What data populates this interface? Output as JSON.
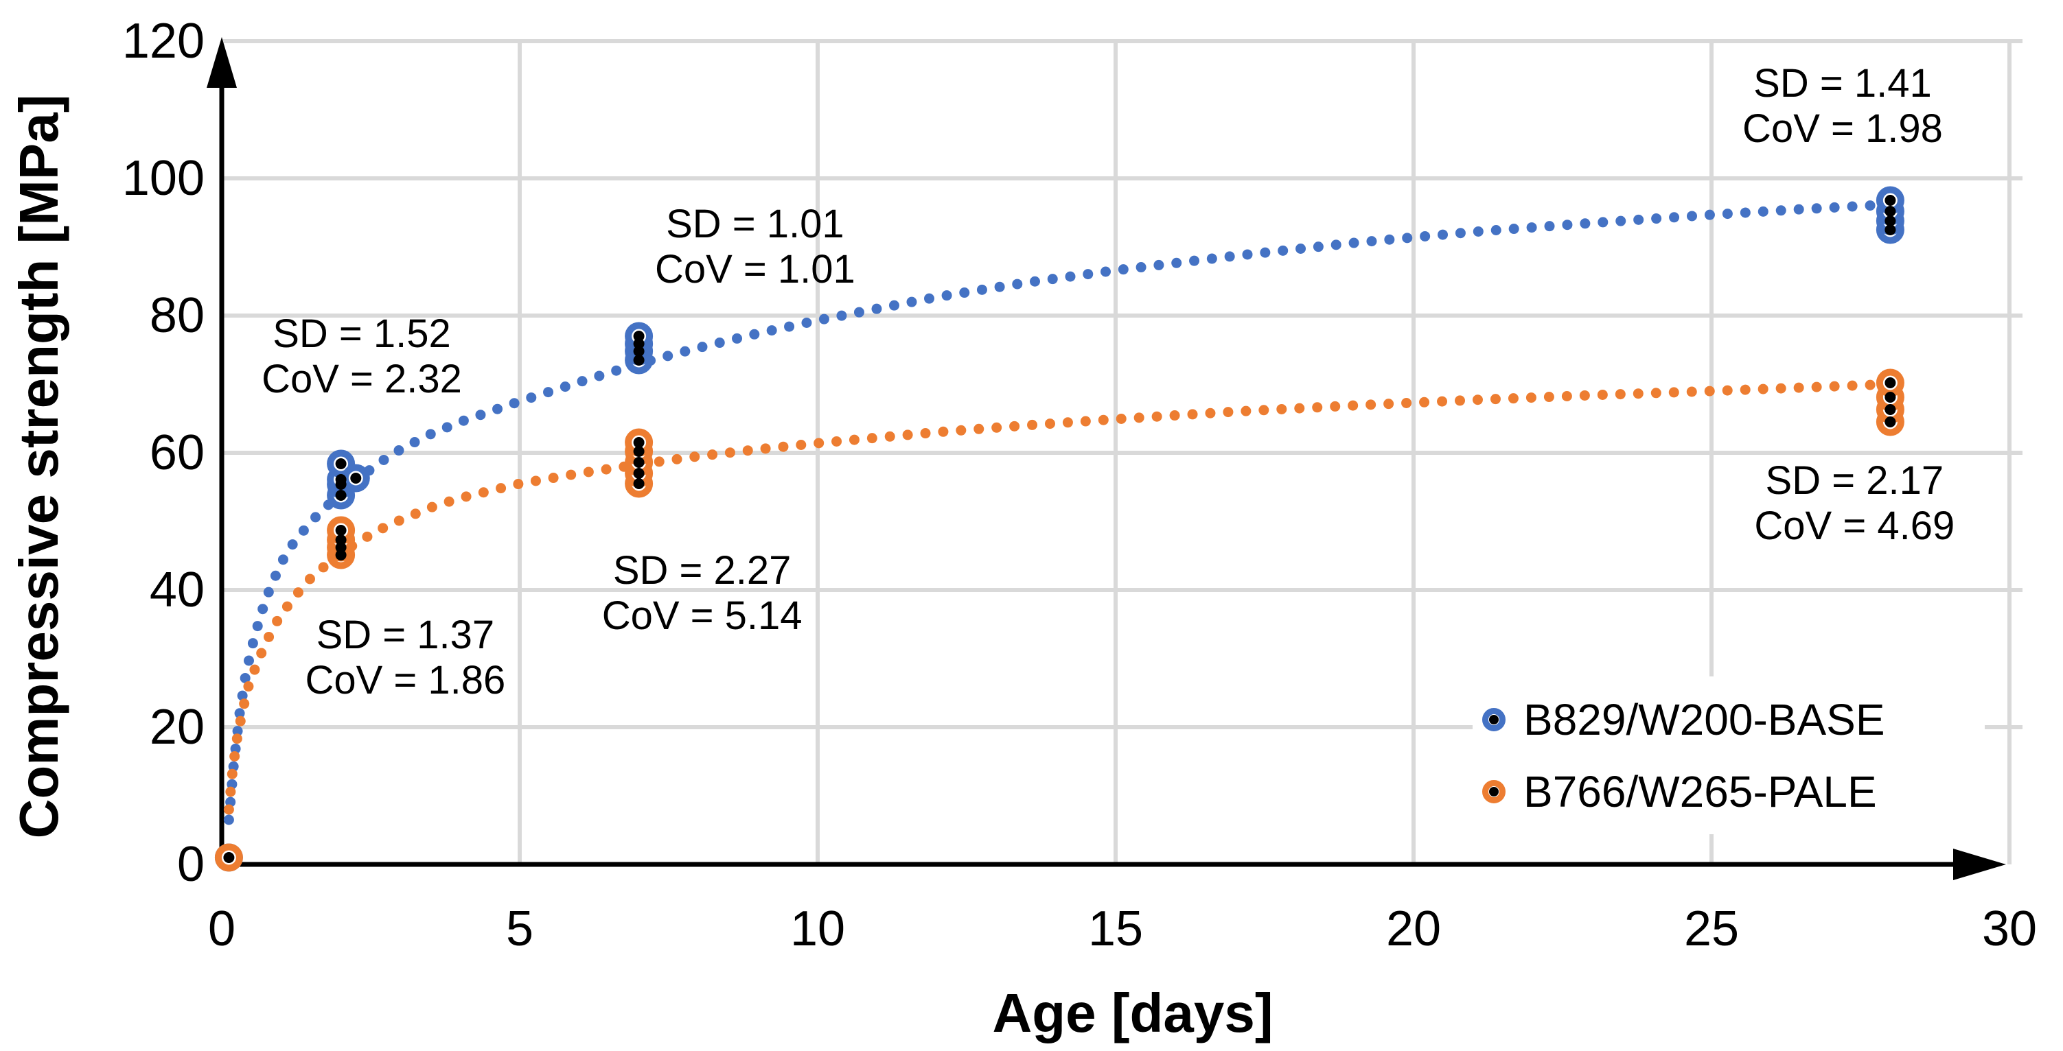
{
  "chart_data": {
    "type": "scatter",
    "title": "",
    "xlabel": "Age [days]",
    "ylabel": "Compressive strength [MPa]",
    "xlim": [
      0,
      30
    ],
    "ylim": [
      0,
      120
    ],
    "xticks": [
      0,
      5,
      10,
      15,
      20,
      25,
      30
    ],
    "yticks": [
      0,
      20,
      40,
      60,
      80,
      100,
      120
    ],
    "grid": true,
    "axis_arrows": true,
    "legend_position": "bottom-right-inside",
    "colors": {
      "grid": "#D9D9D9",
      "axis": "#000000",
      "text": "#000000",
      "marker_center": "#000000",
      "background": "#FFFFFF"
    },
    "series": [
      {
        "name": "B829/W200-BASE",
        "color": "#4472C4",
        "marker": "ring-dot",
        "points": [
          {
            "day": 0.12,
            "values": [
              1.0
            ]
          },
          {
            "day": 2,
            "values": [
              53.8,
              55.4,
              56.1,
              58.4
            ]
          },
          {
            "day": 2.25,
            "values": [
              56.3
            ]
          },
          {
            "day": 7,
            "values": [
              73.5,
              74.8,
              75.9,
              77.0
            ]
          },
          {
            "day": 28,
            "values": [
              92.5,
              93.8,
              95.2,
              96.8
            ]
          }
        ],
        "trend": {
          "style": "dotted",
          "points": [
            [
              0.12,
              6.5
            ],
            [
              0.2,
              14.5
            ],
            [
              0.3,
              22
            ],
            [
              0.4,
              27.5
            ],
            [
              0.5,
              31.5
            ],
            [
              0.65,
              36.3
            ],
            [
              0.8,
              40
            ],
            [
              1.0,
              44
            ],
            [
              1.2,
              46.8
            ],
            [
              1.5,
              50
            ],
            [
              1.8,
              52.5
            ],
            [
              2.2,
              55.5
            ],
            [
              2.6,
              58.3
            ],
            [
              3,
              60.5
            ],
            [
              3.5,
              62.7
            ],
            [
              4,
              64.5
            ],
            [
              5,
              67.5
            ],
            [
              6,
              70.3
            ],
            [
              7,
              73
            ],
            [
              8,
              75.3
            ],
            [
              9,
              77.4
            ],
            [
              10,
              79.3
            ],
            [
              11,
              81
            ],
            [
              12,
              82.7
            ],
            [
              13.5,
              84.8
            ],
            [
              15,
              86.6
            ],
            [
              17,
              88.7
            ],
            [
              19,
              90.6
            ],
            [
              21,
              92.2
            ],
            [
              23,
              93.5
            ],
            [
              25,
              94.7
            ],
            [
              26.5,
              95.5
            ],
            [
              28,
              96.2
            ]
          ]
        }
      },
      {
        "name": "B766/W265-PALE",
        "color": "#ED7D31",
        "marker": "ring-dot",
        "points": [
          {
            "day": 0.12,
            "values": [
              1.0
            ]
          },
          {
            "day": 2,
            "values": [
              45.1,
              46.2,
              47.3,
              48.7
            ]
          },
          {
            "day": 7,
            "values": [
              55.5,
              57.0,
              58.6,
              60.2,
              61.5
            ]
          },
          {
            "day": 28,
            "values": [
              64.5,
              66.3,
              68.1,
              70.2
            ]
          }
        ],
        "trend": {
          "style": "dotted",
          "points": [
            [
              0.12,
              8
            ],
            [
              0.18,
              13.5
            ],
            [
              0.25,
              18
            ],
            [
              0.35,
              22.5
            ],
            [
              0.45,
              26
            ],
            [
              0.6,
              29.5
            ],
            [
              0.75,
              32.5
            ],
            [
              0.95,
              35.8
            ],
            [
              1.2,
              38.8
            ],
            [
              1.5,
              41.8
            ],
            [
              1.8,
              44
            ],
            [
              2.2,
              46.5
            ],
            [
              2.6,
              48.6
            ],
            [
              3,
              50.2
            ],
            [
              3.5,
              52
            ],
            [
              4,
              53.4
            ],
            [
              5,
              55.5
            ],
            [
              6,
              57
            ],
            [
              7,
              58.3
            ],
            [
              8,
              59.5
            ],
            [
              9,
              60.5
            ],
            [
              10,
              61.4
            ],
            [
              11,
              62.2
            ],
            [
              12,
              63
            ],
            [
              13.5,
              64
            ],
            [
              15,
              64.9
            ],
            [
              17,
              66
            ],
            [
              19,
              66.9
            ],
            [
              21,
              67.7
            ],
            [
              23,
              68.4
            ],
            [
              25,
              69
            ],
            [
              26.5,
              69.5
            ],
            [
              28,
              70
            ]
          ]
        }
      }
    ],
    "annotations": [
      {
        "series": "B829/W200-BASE",
        "lines": [
          "SD = 1.52",
          "CoV = 2.32"
        ],
        "day": 2.35,
        "mpa": 74.0,
        "sd": 1.52,
        "cov": 2.32
      },
      {
        "series": "B766/W265-PALE",
        "lines": [
          "SD = 1.37",
          "CoV = 1.86"
        ],
        "day": 3.08,
        "mpa": 30.1,
        "sd": 1.37,
        "cov": 1.86
      },
      {
        "series": "B829/W200-BASE",
        "lines": [
          "SD = 1.01",
          "CoV = 1.01"
        ],
        "day": 8.95,
        "mpa": 90.0,
        "sd": 1.01,
        "cov": 1.01
      },
      {
        "series": "B766/W265-PALE",
        "lines": [
          "SD = 2.27",
          "CoV = 5.14"
        ],
        "day": 8.06,
        "mpa": 39.5,
        "sd": 2.27,
        "cov": 5.14
      },
      {
        "series": "B829/W200-BASE",
        "lines": [
          "SD = 1.41",
          "CoV = 1.98"
        ],
        "day": 27.2,
        "mpa": 110.5,
        "sd": 1.41,
        "cov": 1.98
      },
      {
        "series": "B766/W265-PALE",
        "lines": [
          "SD = 2.17",
          "CoV = 4.69"
        ],
        "day": 27.4,
        "mpa": 52.6,
        "sd": 2.17,
        "cov": 4.69
      }
    ]
  }
}
